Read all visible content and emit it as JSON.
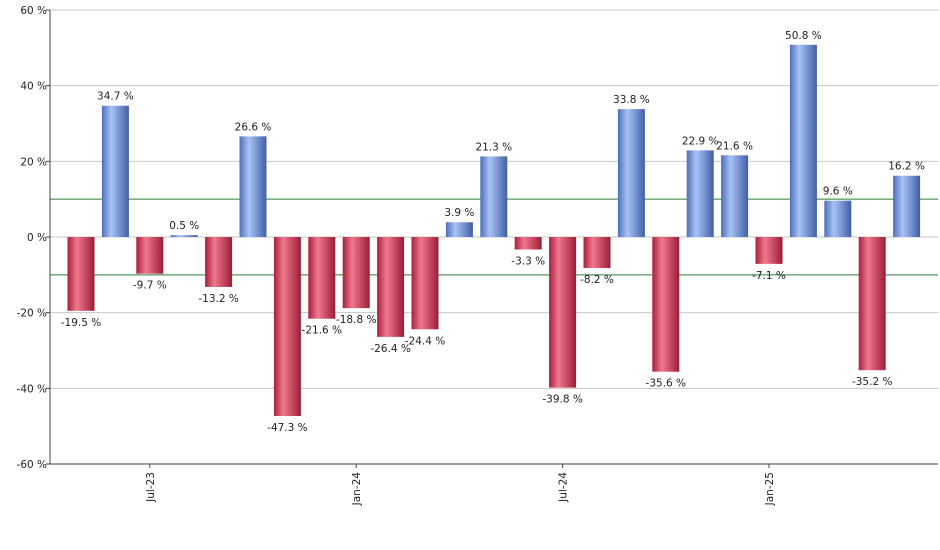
{
  "chart_data": {
    "type": "bar",
    "title": "",
    "xlabel": "",
    "ylabel": "",
    "ylim": [
      -60,
      60
    ],
    "y_ticks": [
      60,
      40,
      20,
      0,
      -20,
      -40,
      -60
    ],
    "y_tick_suffix": " %",
    "grid": true,
    "reference_lines": [
      10,
      -10
    ],
    "reference_line_color": "#2e7d32",
    "positive_color": "#7b9ce0",
    "negative_color": "#c8324e",
    "x_tick_labels": [
      {
        "label": "Jul-23",
        "index": 2
      },
      {
        "label": "Jan-24",
        "index": 8
      },
      {
        "label": "Jul-24",
        "index": 14
      },
      {
        "label": "Jan-25",
        "index": 20
      }
    ],
    "values": [
      -19.5,
      34.7,
      -9.7,
      0.5,
      -13.2,
      26.6,
      -47.3,
      -21.6,
      -18.8,
      -26.4,
      -24.4,
      3.9,
      21.3,
      -3.3,
      -39.8,
      -8.2,
      33.8,
      -35.6,
      22.9,
      21.6,
      -7.1,
      50.8,
      9.6,
      -35.2,
      16.2
    ],
    "data_labels": [
      "-19.5 %",
      "34.7 %",
      "-9.7 %",
      "0.5 %",
      "-13.2 %",
      "26.6 %",
      "-47.3 %",
      "-21.6 %",
      "-18.8 %",
      "-26.4 %",
      "-24.4 %",
      "3.9 %",
      "21.3 %",
      "-3.3 %",
      "-39.8 %",
      "-8.2 %",
      "33.8 %",
      "-35.6 %",
      "22.9 %",
      "21.6 %",
      "-7.1 %",
      "50.8 %",
      "9.6 %",
      "-35.2 %",
      "16.2 %"
    ]
  }
}
